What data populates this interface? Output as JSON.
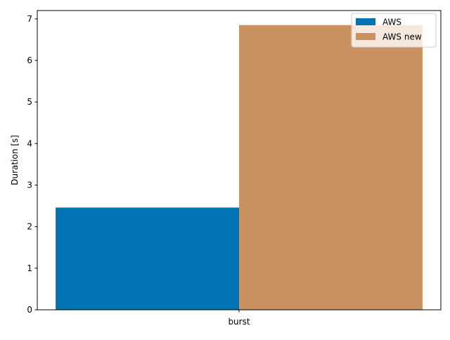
{
  "chart_data": {
    "type": "bar",
    "title": "",
    "xlabel": "",
    "ylabel": "Duration [s]",
    "categories": [
      "burst"
    ],
    "ylim": [
      0,
      7.2
    ],
    "yticks": [
      0,
      1,
      2,
      3,
      4,
      5,
      6,
      7
    ],
    "grid": false,
    "legend_position": "top-right",
    "series": [
      {
        "name": "AWS",
        "values": [
          2.46
        ],
        "color": "#0173b2"
      },
      {
        "name": "AWS new",
        "values": [
          6.85
        ],
        "color": "#ca9161"
      }
    ]
  }
}
